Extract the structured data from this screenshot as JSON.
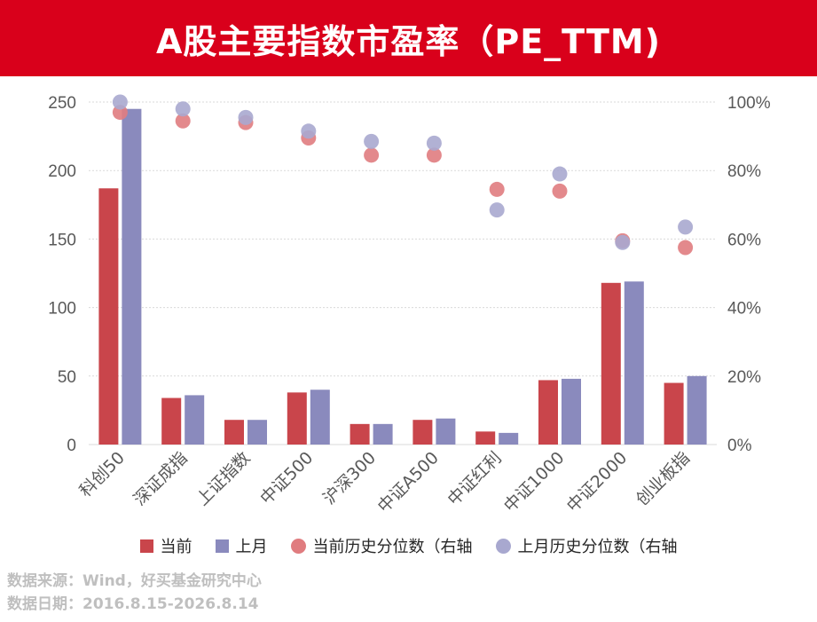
{
  "header": {
    "title": "A股主要指数市盈率（PE_TTM)"
  },
  "chart_data": {
    "type": "bar",
    "categories": [
      "科创50",
      "深证成指",
      "上证指数",
      "中证500",
      "沪深300",
      "中证A500",
      "中证红利",
      "中证1000",
      "中证2000",
      "创业板指"
    ],
    "series": [
      {
        "name": "当前",
        "kind": "bar",
        "axis": "left",
        "color": "#c9454b",
        "values": [
          187,
          34,
          18,
          38,
          15,
          18,
          9.5,
          47,
          118,
          45
        ]
      },
      {
        "name": "上月",
        "kind": "bar",
        "axis": "left",
        "color": "#8a8abd",
        "values": [
          245,
          36,
          18,
          40,
          15,
          19,
          8.5,
          48,
          119,
          50
        ]
      },
      {
        "name": "当前历史分位数（右轴",
        "kind": "scatter",
        "axis": "right",
        "color": "#e07c7f",
        "values": [
          97,
          94.5,
          94,
          89.5,
          84.5,
          84.5,
          74.5,
          74,
          59.5,
          57.5
        ]
      },
      {
        "name": "上月历史分位数（右轴",
        "kind": "scatter",
        "axis": "right",
        "color": "#a8a8cf",
        "values": [
          100,
          98,
          95.5,
          91.5,
          88.5,
          88,
          68.5,
          79,
          59,
          63.5
        ]
      }
    ],
    "y_left": {
      "min": 0,
      "max": 250,
      "ticks": [
        "0",
        "50",
        "100",
        "150",
        "200",
        "250"
      ]
    },
    "y_right": {
      "min": 0,
      "max": 100,
      "ticks": [
        "0%",
        "20%",
        "40%",
        "60%",
        "80%",
        "100%"
      ]
    },
    "grid": true,
    "legend_position": "bottom"
  },
  "legend": {
    "items": [
      {
        "label": "当前",
        "shape": "square",
        "color": "#c9454b"
      },
      {
        "label": "上月",
        "shape": "square",
        "color": "#8a8abd"
      },
      {
        "label": "当前历史分位数（右轴",
        "shape": "dot",
        "color": "#e07c7f"
      },
      {
        "label": "上月历史分位数（右轴",
        "shape": "dot",
        "color": "#a8a8cf"
      }
    ]
  },
  "footer": {
    "source": "数据来源：Wind，好买基金研究中心",
    "date": "数据日期：2016.8.15-2026.8.14"
  }
}
